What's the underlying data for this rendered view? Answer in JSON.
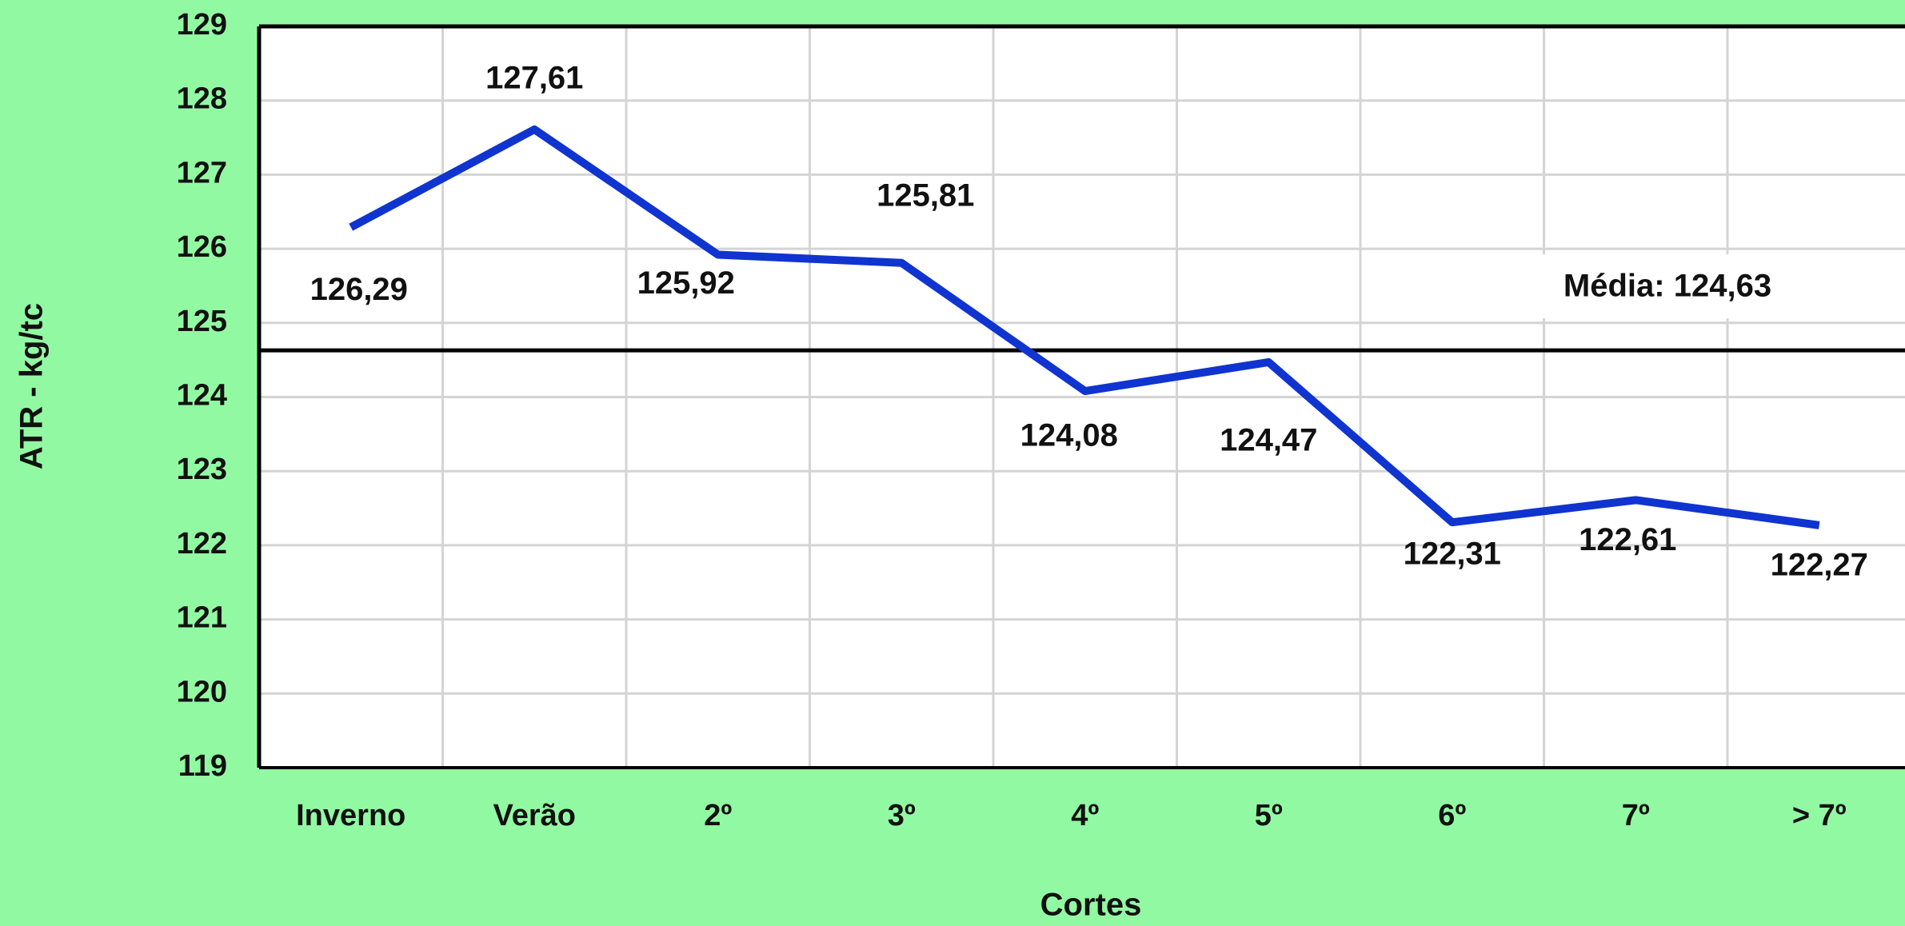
{
  "chart_data": {
    "type": "line",
    "x_label": "Cortes",
    "y_label": "ATR - kg/tc",
    "categories": [
      "Inverno",
      "Verão",
      "2º",
      "3º",
      "4º",
      "5º",
      "6º",
      "7º",
      "> 7º"
    ],
    "series": [
      {
        "name": "ATR",
        "color": "#1034d0",
        "values": [
          126.29,
          127.61,
          125.92,
          125.81,
          124.08,
          124.47,
          122.31,
          122.61,
          122.27
        ],
        "value_labels": [
          "126,29",
          "127,61",
          "125,92",
          "125,81",
          "124,08",
          "124,47",
          "122,31",
          "122,61",
          "122,27"
        ]
      }
    ],
    "reference_line": {
      "text": "Média: 124,63",
      "value": 124.63,
      "color": "#000000"
    },
    "ylim": [
      119,
      129
    ],
    "yticks": [
      119,
      120,
      121,
      122,
      123,
      124,
      125,
      126,
      127,
      128,
      129
    ],
    "grid": true
  }
}
